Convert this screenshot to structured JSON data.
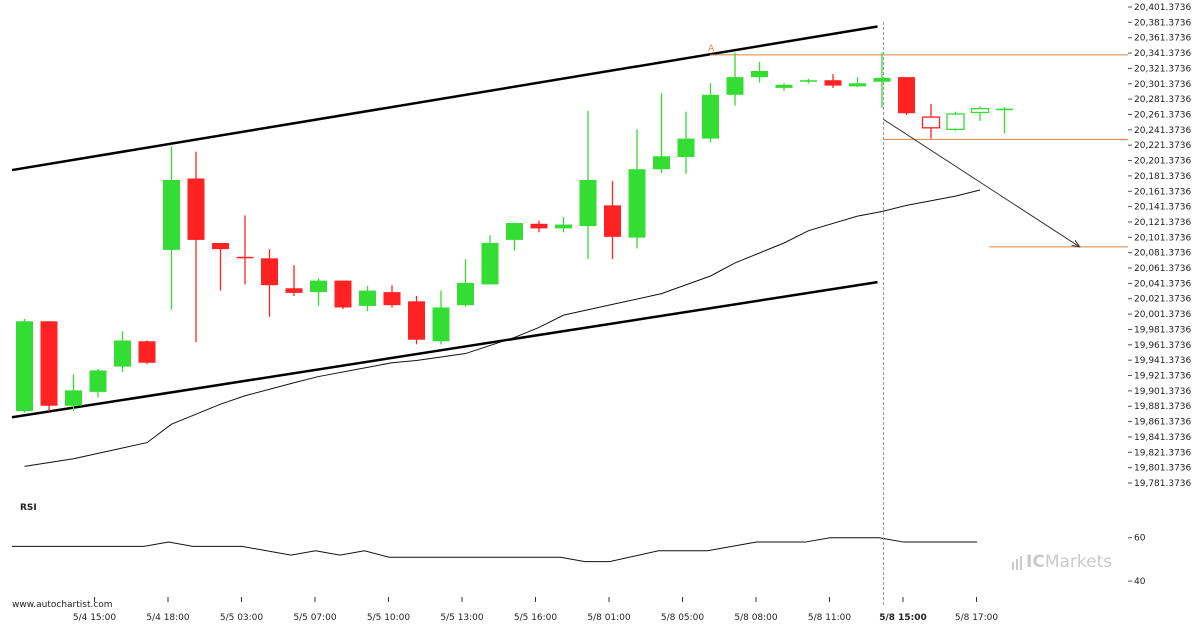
{
  "watermark": "www.autochartist.com",
  "brand": {
    "prefix": "IC",
    "name": "Markets"
  },
  "colors": {
    "up": "#33dd33",
    "down": "#ff2222",
    "pattern_line": "#000000",
    "level_line": "#e08040",
    "grid_dash": "#999999"
  },
  "chart_data": {
    "type": "candlestick",
    "y_axis": {
      "min": 19781.3736,
      "max": 20401.3736,
      "step": 20,
      "tick_labels": [
        "20,401.3736",
        "20,381.3736",
        "20,361.3736",
        "20,341.3736",
        "20,321.3736",
        "20,301.3736",
        "20,281.3736",
        "20,261.3736",
        "20,241.3736",
        "20,221.3736",
        "20,201.3736",
        "20,181.3736",
        "20,161.3736",
        "20,141.3736",
        "20,121.3736",
        "20,101.3736",
        "20,081.3736",
        "20,061.3736",
        "20,041.3736",
        "20,021.3736",
        "20,001.3736",
        "19,981.3736",
        "19,961.3736",
        "19,941.3736",
        "19,921.3736",
        "19,901.3736",
        "19,881.3736",
        "19,861.3736",
        "19,841.3736",
        "19,821.3736",
        "19,801.3736",
        "19,781.3736"
      ]
    },
    "x_axis": {
      "tick_labels": [
        {
          "label": "5/4 15:00",
          "bar": 2
        },
        {
          "label": "5/4 18:00",
          "bar": 5
        },
        {
          "label": "5/5 03:00",
          "bar": 8
        },
        {
          "label": "5/5 07:00",
          "bar": 11
        },
        {
          "label": "5/5 10:00",
          "bar": 14
        },
        {
          "label": "5/5 13:00",
          "bar": 17
        },
        {
          "label": "5/5 16:00",
          "bar": 20
        },
        {
          "label": "5/8 01:00",
          "bar": 23
        },
        {
          "label": "5/8 05:00",
          "bar": 26
        },
        {
          "label": "5/8 08:00",
          "bar": 29
        },
        {
          "label": "5/8 11:00",
          "bar": 32
        },
        {
          "label": "5/8 15:00",
          "bar": 35,
          "bold": true
        },
        {
          "label": "5/8 17:00",
          "bar": 38
        }
      ]
    },
    "candles": [
      {
        "o": 19875,
        "h": 19995,
        "l": 19873,
        "c": 19992
      },
      {
        "o": 19992,
        "h": 19992,
        "l": 19875,
        "c": 19882
      },
      {
        "o": 19882,
        "h": 19923,
        "l": 19875,
        "c": 19902
      },
      {
        "o": 19900,
        "h": 19930,
        "l": 19893,
        "c": 19928
      },
      {
        "o": 19933,
        "h": 19979,
        "l": 19926,
        "c": 19967
      },
      {
        "o": 19966,
        "h": 19967,
        "l": 19936,
        "c": 19938
      },
      {
        "o": 20085,
        "h": 20220,
        "l": 20007,
        "c": 20176
      },
      {
        "o": 20178,
        "h": 20213,
        "l": 19965,
        "c": 20098
      },
      {
        "o": 20094,
        "h": 20094,
        "l": 20032,
        "c": 20086
      },
      {
        "o": 20076,
        "h": 20130,
        "l": 20040,
        "c": 20075
      },
      {
        "o": 20074,
        "h": 20086,
        "l": 19998,
        "c": 20039
      },
      {
        "o": 20035,
        "h": 20065,
        "l": 20025,
        "c": 20029
      },
      {
        "o": 20030,
        "h": 20048,
        "l": 20012,
        "c": 20045
      },
      {
        "o": 20045,
        "h": 20045,
        "l": 20008,
        "c": 20010
      },
      {
        "o": 20012,
        "h": 20038,
        "l": 20005,
        "c": 20032
      },
      {
        "o": 20030,
        "h": 20039,
        "l": 20010,
        "c": 20013
      },
      {
        "o": 20018,
        "h": 20025,
        "l": 19962,
        "c": 19968
      },
      {
        "o": 19966,
        "h": 20032,
        "l": 19962,
        "c": 20010
      },
      {
        "o": 20013,
        "h": 20073,
        "l": 20011,
        "c": 20042
      },
      {
        "o": 20040,
        "h": 20104,
        "l": 20040,
        "c": 20094
      },
      {
        "o": 20098,
        "h": 20120,
        "l": 20084,
        "c": 20120
      },
      {
        "o": 20119,
        "h": 20123,
        "l": 20108,
        "c": 20113
      },
      {
        "o": 20113,
        "h": 20128,
        "l": 20108,
        "c": 20118
      },
      {
        "o": 20116,
        "h": 20266,
        "l": 20073,
        "c": 20176
      },
      {
        "o": 20143,
        "h": 20175,
        "l": 20073,
        "c": 20102
      },
      {
        "o": 20101,
        "h": 20242,
        "l": 20087,
        "c": 20190
      },
      {
        "o": 20190,
        "h": 20289,
        "l": 20185,
        "c": 20207
      },
      {
        "o": 20206,
        "h": 20265,
        "l": 20184,
        "c": 20230
      },
      {
        "o": 20230,
        "h": 20302,
        "l": 20225,
        "c": 20287
      },
      {
        "o": 20287,
        "h": 20342,
        "l": 20273,
        "c": 20310
      },
      {
        "o": 20310,
        "h": 20330,
        "l": 20303,
        "c": 20318
      },
      {
        "o": 20296,
        "h": 20302,
        "l": 20292,
        "c": 20300
      },
      {
        "o": 20304,
        "h": 20308,
        "l": 20302,
        "c": 20306
      },
      {
        "o": 20306,
        "h": 20314,
        "l": 20296,
        "c": 20299
      },
      {
        "o": 20298,
        "h": 20310,
        "l": 20297,
        "c": 20302
      },
      {
        "o": 20304,
        "h": 20342,
        "l": 20270,
        "c": 20309
      },
      {
        "o": 20310,
        "h": 20310,
        "l": 20261,
        "c": 20263
      },
      {
        "o": 20258,
        "h": 20275,
        "l": 20230,
        "c": 20244
      },
      {
        "o": 20242,
        "h": 20265,
        "l": 20240,
        "c": 20262
      },
      {
        "o": 20264,
        "h": 20272,
        "l": 20253,
        "c": 20269
      },
      {
        "o": 20269,
        "h": 20271,
        "l": 20237,
        "c": 20269
      }
    ],
    "moving_average": [
      [
        0,
        19803
      ],
      [
        2,
        19813
      ],
      [
        4,
        19827
      ],
      [
        5,
        19834
      ],
      [
        6,
        19858
      ],
      [
        8,
        19884
      ],
      [
        9,
        19895
      ],
      [
        11,
        19912
      ],
      [
        12,
        19920
      ],
      [
        14,
        19932
      ],
      [
        15,
        19938
      ],
      [
        16,
        19941
      ],
      [
        18,
        19950
      ],
      [
        20,
        19971
      ],
      [
        21,
        19984
      ],
      [
        22,
        20000
      ],
      [
        24,
        20014
      ],
      [
        26,
        20028
      ],
      [
        28,
        20051
      ],
      [
        29,
        20068
      ],
      [
        31,
        20094
      ],
      [
        32,
        20110
      ],
      [
        34,
        20129
      ],
      [
        35,
        20135
      ],
      [
        36,
        20143
      ],
      [
        38,
        20155
      ],
      [
        39,
        20163
      ]
    ],
    "channel": {
      "upper": [
        [
          0,
          20189
        ],
        [
          35,
          20376
        ]
      ],
      "lower": [
        [
          0,
          19867
        ],
        [
          35,
          20043
        ]
      ]
    },
    "levels": {
      "upper": {
        "value": 20339,
        "from_bar": 28,
        "label": "A"
      },
      "lower": {
        "value": 20229,
        "from_bar": 35
      },
      "target": {
        "value": 20089,
        "from_bar": 39
      }
    },
    "forecast_arrow": {
      "from": [
        35,
        20255
      ],
      "to": [
        43,
        20089
      ]
    },
    "vertical_marker_bar": 35,
    "rsi": {
      "title": "RSI",
      "tick_labels": [
        "60",
        "40"
      ],
      "min": 35,
      "max": 70,
      "values": [
        [
          0,
          56
        ],
        [
          5,
          56
        ],
        [
          6,
          58
        ],
        [
          7,
          56
        ],
        [
          9,
          56
        ],
        [
          11,
          52
        ],
        [
          12,
          54
        ],
        [
          13,
          52
        ],
        [
          14,
          54
        ],
        [
          15,
          51
        ],
        [
          19,
          51
        ],
        [
          20,
          51
        ],
        [
          21,
          51
        ],
        [
          22,
          51
        ],
        [
          23,
          49
        ],
        [
          24,
          49
        ],
        [
          26,
          54
        ],
        [
          28,
          54
        ],
        [
          30,
          58
        ],
        [
          32,
          58
        ],
        [
          33,
          60
        ],
        [
          35,
          60
        ],
        [
          36,
          58
        ],
        [
          39,
          58
        ]
      ]
    }
  }
}
